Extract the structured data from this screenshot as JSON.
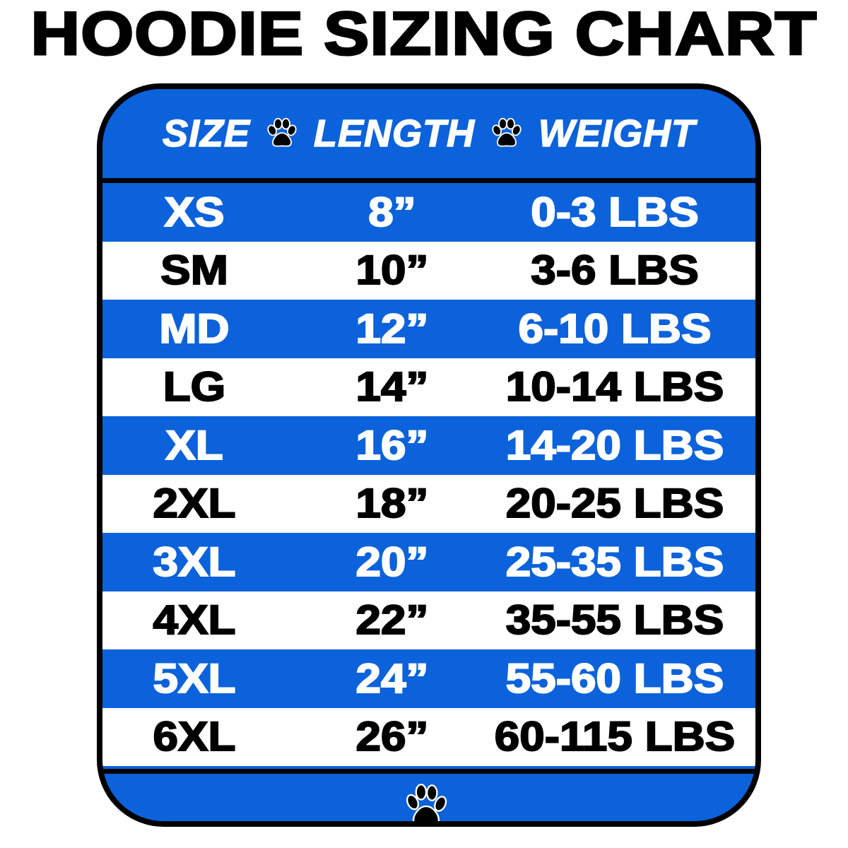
{
  "title": "HOODIE SIZING CHART",
  "colors": {
    "blue": "#0b62db",
    "white": "#ffffff",
    "border": "#000000"
  },
  "icons": {
    "separator": "paw-print-icon",
    "footer": "paw-print-icon"
  },
  "chart_data": {
    "type": "table",
    "title": "HOODIE SIZING CHART",
    "columns": [
      "SIZE",
      "LENGTH",
      "WEIGHT"
    ],
    "rows": [
      [
        "XS",
        "8”",
        "0-3 LBS"
      ],
      [
        "SM",
        "10”",
        "3-6 LBS"
      ],
      [
        "MD",
        "12”",
        "6-10 LBS"
      ],
      [
        "LG",
        "14”",
        "10-14 LBS"
      ],
      [
        "XL",
        "16”",
        "14-20 LBS"
      ],
      [
        "2XL",
        "18”",
        "20-25 LBS"
      ],
      [
        "3XL",
        "20”",
        "25-35 LBS"
      ],
      [
        "4XL",
        "22”",
        "35-55 LBS"
      ],
      [
        "5XL",
        "24”",
        "55-60 LBS"
      ],
      [
        "6XL",
        "26”",
        "60-115 LBS"
      ]
    ]
  }
}
